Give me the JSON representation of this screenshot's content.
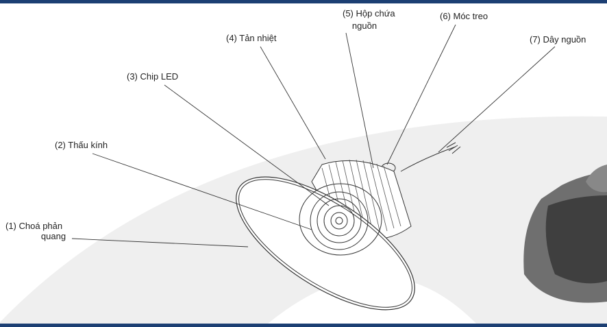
{
  "labels": [
    {
      "lines": [
        "(1) Choá phản",
        "quang"
      ]
    },
    {
      "lines": [
        "(2) Thấu kính"
      ]
    },
    {
      "lines": [
        "(3) Chip LED"
      ]
    },
    {
      "lines": [
        "(4) Tản nhiệt"
      ]
    },
    {
      "lines": [
        "(5) Hộp chứa",
        "nguồn"
      ]
    },
    {
      "lines": [
        "(6) Móc treo"
      ]
    },
    {
      "lines": [
        "(7) Dây nguồn"
      ]
    }
  ]
}
